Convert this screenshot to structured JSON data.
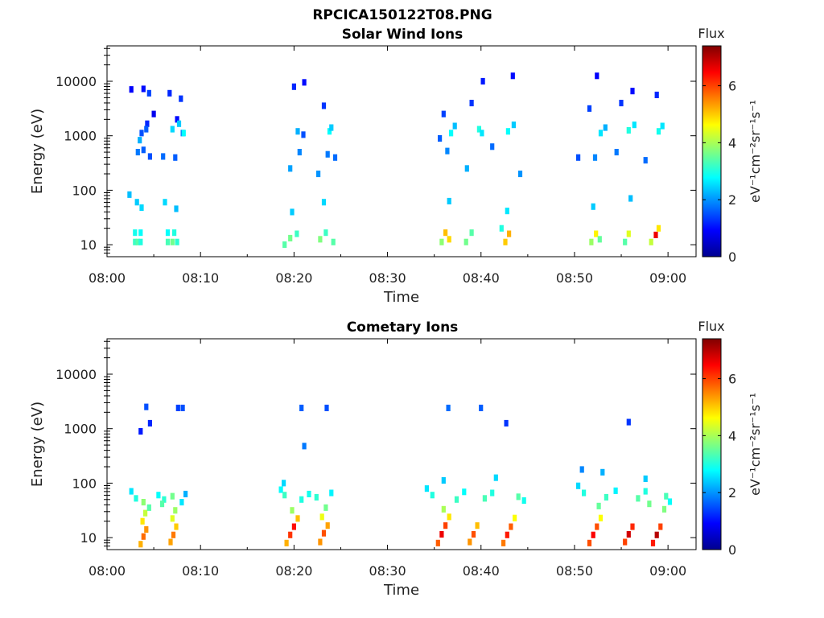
{
  "figure": {
    "title": "RPCICA150122T08.PNG"
  },
  "colorbar": {
    "label": "Flux",
    "unit_text": "eV⁻¹cm⁻²sr⁻¹s⁻¹",
    "ticks": [
      "0",
      "2",
      "4",
      "6"
    ],
    "range": [
      0,
      7.4
    ],
    "colormap": "jet"
  },
  "chart_data": [
    {
      "type": "heatmap",
      "title": "Solar Wind Ions",
      "xlabel": "Time",
      "ylabel": "Energy (eV)",
      "xticks": [
        "08:00",
        "08:10",
        "08:20",
        "08:30",
        "08:40",
        "08:50",
        "09:00"
      ],
      "yticks": [
        "10",
        "100",
        "1000",
        "10000"
      ],
      "xlim_minutes": [
        0,
        63
      ],
      "ylim_log10": [
        0.78,
        4.65
      ],
      "yscale": "log",
      "cells": [
        [
          3.0,
          1.05,
          3.2
        ],
        [
          3.3,
          1.05,
          3.4
        ],
        [
          3.6,
          1.05,
          3.0
        ],
        [
          3.0,
          1.22,
          2.9
        ],
        [
          3.6,
          1.22,
          2.8
        ],
        [
          6.5,
          1.05,
          3.3
        ],
        [
          7.0,
          1.05,
          3.6
        ],
        [
          7.5,
          1.05,
          3.1
        ],
        [
          6.5,
          1.22,
          2.8
        ],
        [
          7.2,
          1.22,
          3.0
        ],
        [
          2.4,
          1.92,
          2.3
        ],
        [
          3.2,
          1.78,
          2.4
        ],
        [
          3.7,
          1.68,
          2.5
        ],
        [
          6.2,
          1.78,
          2.5
        ],
        [
          7.4,
          1.66,
          2.3
        ],
        [
          3.3,
          2.7,
          1.8
        ],
        [
          3.9,
          2.74,
          1.6
        ],
        [
          4.6,
          2.62,
          1.5
        ],
        [
          6.0,
          2.62,
          1.7
        ],
        [
          7.3,
          2.6,
          1.6
        ],
        [
          3.7,
          3.05,
          1.5
        ],
        [
          4.3,
          3.22,
          1.2
        ],
        [
          5.0,
          3.4,
          0.8
        ],
        [
          7.5,
          3.3,
          1.0
        ],
        [
          8.1,
          3.05,
          1.7
        ],
        [
          3.5,
          2.92,
          2.2
        ],
        [
          4.2,
          3.12,
          1.6
        ],
        [
          7.0,
          3.12,
          2.5
        ],
        [
          7.7,
          3.22,
          2.4
        ],
        [
          8.2,
          3.05,
          2.8
        ],
        [
          2.6,
          3.85,
          0.9
        ],
        [
          3.9,
          3.86,
          1.0
        ],
        [
          4.5,
          3.78,
          1.4
        ],
        [
          6.7,
          3.78,
          1.2
        ],
        [
          7.9,
          3.68,
          1.3
        ],
        [
          19.0,
          1.0,
          3.4
        ],
        [
          19.6,
          1.12,
          3.6
        ],
        [
          20.3,
          1.2,
          3.2
        ],
        [
          22.8,
          1.1,
          3.7
        ],
        [
          23.4,
          1.22,
          3.2
        ],
        [
          24.2,
          1.05,
          3.4
        ],
        [
          19.8,
          1.6,
          2.4
        ],
        [
          23.2,
          1.78,
          2.5
        ],
        [
          20.6,
          2.7,
          1.9
        ],
        [
          23.6,
          2.66,
          1.8
        ],
        [
          20.4,
          3.08,
          2.2
        ],
        [
          21.0,
          3.02,
          1.5
        ],
        [
          23.8,
          3.08,
          2.8
        ],
        [
          24.0,
          3.15,
          2.4
        ],
        [
          20.0,
          3.9,
          1.2
        ],
        [
          21.1,
          3.98,
          1.0
        ],
        [
          23.2,
          3.55,
          1.3
        ],
        [
          19.6,
          2.4,
          2.1
        ],
        [
          22.6,
          2.3,
          2.0
        ],
        [
          24.4,
          2.6,
          1.7
        ],
        [
          35.8,
          1.05,
          3.8
        ],
        [
          36.2,
          1.22,
          5.1
        ],
        [
          36.6,
          1.1,
          4.9
        ],
        [
          38.4,
          1.05,
          3.6
        ],
        [
          39.0,
          1.22,
          3.4
        ],
        [
          42.6,
          1.05,
          5.0
        ],
        [
          43.0,
          1.2,
          5.2
        ],
        [
          42.2,
          1.3,
          3.0
        ],
        [
          36.6,
          1.8,
          2.4
        ],
        [
          42.8,
          1.62,
          2.6
        ],
        [
          36.4,
          2.72,
          1.9
        ],
        [
          36.8,
          3.05,
          2.8
        ],
        [
          37.2,
          3.18,
          2.3
        ],
        [
          39.8,
          3.12,
          3.0
        ],
        [
          40.1,
          3.05,
          2.6
        ],
        [
          42.9,
          3.08,
          2.8
        ],
        [
          43.5,
          3.2,
          2.4
        ],
        [
          36.0,
          3.4,
          1.4
        ],
        [
          39.0,
          3.6,
          1.3
        ],
        [
          40.2,
          4.0,
          1.1
        ],
        [
          43.4,
          4.1,
          1.0
        ],
        [
          41.2,
          2.8,
          1.7
        ],
        [
          38.5,
          2.4,
          2.2
        ],
        [
          44.2,
          2.3,
          2.0
        ],
        [
          35.6,
          2.95,
          1.6
        ],
        [
          51.8,
          1.05,
          3.9
        ],
        [
          52.3,
          1.2,
          4.7
        ],
        [
          52.7,
          1.1,
          3.5
        ],
        [
          55.4,
          1.05,
          3.4
        ],
        [
          55.8,
          1.2,
          4.4
        ],
        [
          58.2,
          1.05,
          4.2
        ],
        [
          58.7,
          1.18,
          6.6
        ],
        [
          59.0,
          1.3,
          4.8
        ],
        [
          52.0,
          1.7,
          2.4
        ],
        [
          56.0,
          1.85,
          2.3
        ],
        [
          52.2,
          2.6,
          1.9
        ],
        [
          52.8,
          3.05,
          2.6
        ],
        [
          53.3,
          3.15,
          2.2
        ],
        [
          55.8,
          3.1,
          3.0
        ],
        [
          56.4,
          3.2,
          2.6
        ],
        [
          59.0,
          3.08,
          2.9
        ],
        [
          59.4,
          3.18,
          2.6
        ],
        [
          51.6,
          3.5,
          1.4
        ],
        [
          55.0,
          3.6,
          1.3
        ],
        [
          56.2,
          3.82,
          1.0
        ],
        [
          52.4,
          4.1,
          0.9
        ],
        [
          58.8,
          3.75,
          1.2
        ],
        [
          54.5,
          2.7,
          1.8
        ],
        [
          57.6,
          2.55,
          1.7
        ],
        [
          50.4,
          2.6,
          1.5
        ]
      ]
    },
    {
      "type": "heatmap",
      "title": "Cometary Ions",
      "xlabel": "Time",
      "ylabel": "Energy (eV)",
      "xticks": [
        "08:00",
        "08:10",
        "08:20",
        "08:30",
        "08:40",
        "08:50",
        "09:00"
      ],
      "yticks": [
        "10",
        "100",
        "1000",
        "10000"
      ],
      "xlim_minutes": [
        0,
        63
      ],
      "ylim_log10": [
        0.78,
        4.65
      ],
      "yscale": "log",
      "cells": [
        [
          3.6,
          0.88,
          5.2
        ],
        [
          3.9,
          1.02,
          5.7
        ],
        [
          4.2,
          1.15,
          5.4
        ],
        [
          3.8,
          1.3,
          4.8
        ],
        [
          4.1,
          1.45,
          4.2
        ],
        [
          6.8,
          0.92,
          5.3
        ],
        [
          7.1,
          1.05,
          5.6
        ],
        [
          7.4,
          1.2,
          5.0
        ],
        [
          7.0,
          1.35,
          4.4
        ],
        [
          7.3,
          1.5,
          3.9
        ],
        [
          2.6,
          1.85,
          2.6
        ],
        [
          3.1,
          1.72,
          3.0
        ],
        [
          3.9,
          1.65,
          3.8
        ],
        [
          4.5,
          1.55,
          3.4
        ],
        [
          5.5,
          1.78,
          2.8
        ],
        [
          6.1,
          1.7,
          3.1
        ],
        [
          7.0,
          1.76,
          3.6
        ],
        [
          8.0,
          1.65,
          2.6
        ],
        [
          8.4,
          1.8,
          2.2
        ],
        [
          5.9,
          1.62,
          3.4
        ],
        [
          4.2,
          3.4,
          1.5
        ],
        [
          7.6,
          3.38,
          1.4
        ],
        [
          4.6,
          3.1,
          1.2
        ],
        [
          3.6,
          2.95,
          1.1
        ],
        [
          8.1,
          3.38,
          1.5
        ],
        [
          19.2,
          0.9,
          5.2
        ],
        [
          19.6,
          1.05,
          6.1
        ],
        [
          20.0,
          1.2,
          6.4
        ],
        [
          20.4,
          1.35,
          5.1
        ],
        [
          19.8,
          1.5,
          3.9
        ],
        [
          22.8,
          0.92,
          5.4
        ],
        [
          23.2,
          1.08,
          5.9
        ],
        [
          23.6,
          1.22,
          5.3
        ],
        [
          23.0,
          1.38,
          4.5
        ],
        [
          23.4,
          1.55,
          3.6
        ],
        [
          18.6,
          1.88,
          2.8
        ],
        [
          19.0,
          1.78,
          3.2
        ],
        [
          20.8,
          1.7,
          3.0
        ],
        [
          21.6,
          1.8,
          2.9
        ],
        [
          22.4,
          1.74,
          3.1
        ],
        [
          24.0,
          1.82,
          2.7
        ],
        [
          20.8,
          3.38,
          1.6
        ],
        [
          23.5,
          3.38,
          1.5
        ],
        [
          21.1,
          2.68,
          1.8
        ],
        [
          18.9,
          2.0,
          2.5
        ],
        [
          35.4,
          0.9,
          5.8
        ],
        [
          35.8,
          1.06,
          6.6
        ],
        [
          36.2,
          1.22,
          6.0
        ],
        [
          36.6,
          1.38,
          4.8
        ],
        [
          36.0,
          1.52,
          4.0
        ],
        [
          38.8,
          0.92,
          5.4
        ],
        [
          39.2,
          1.06,
          5.9
        ],
        [
          39.6,
          1.22,
          5.1
        ],
        [
          42.4,
          0.9,
          5.6
        ],
        [
          42.8,
          1.05,
          6.3
        ],
        [
          43.2,
          1.2,
          5.8
        ],
        [
          43.6,
          1.36,
          4.6
        ],
        [
          34.2,
          1.9,
          2.6
        ],
        [
          34.8,
          1.78,
          3.0
        ],
        [
          37.4,
          1.7,
          3.2
        ],
        [
          38.2,
          1.84,
          2.8
        ],
        [
          40.4,
          1.72,
          3.3
        ],
        [
          41.2,
          1.82,
          3.0
        ],
        [
          44.0,
          1.75,
          3.4
        ],
        [
          44.6,
          1.68,
          2.9
        ],
        [
          36.5,
          3.38,
          1.7
        ],
        [
          40.0,
          3.38,
          1.6
        ],
        [
          42.7,
          3.1,
          1.3
        ],
        [
          36.0,
          2.05,
          2.4
        ],
        [
          41.6,
          2.1,
          2.5
        ],
        [
          51.6,
          0.9,
          5.9
        ],
        [
          52.0,
          1.05,
          6.5
        ],
        [
          52.4,
          1.2,
          5.9
        ],
        [
          52.8,
          1.36,
          4.6
        ],
        [
          55.4,
          0.92,
          6.0
        ],
        [
          55.8,
          1.06,
          6.8
        ],
        [
          56.2,
          1.2,
          6.2
        ],
        [
          58.4,
          0.9,
          6.3
        ],
        [
          58.8,
          1.05,
          7.0
        ],
        [
          59.2,
          1.2,
          6.0
        ],
        [
          50.4,
          1.95,
          2.5
        ],
        [
          51.0,
          1.82,
          3.0
        ],
        [
          53.4,
          1.74,
          3.2
        ],
        [
          54.4,
          1.86,
          2.7
        ],
        [
          56.8,
          1.72,
          3.4
        ],
        [
          57.6,
          1.85,
          3.0
        ],
        [
          59.8,
          1.76,
          3.3
        ],
        [
          60.2,
          1.66,
          2.8
        ],
        [
          55.8,
          3.12,
          1.3
        ],
        [
          57.6,
          2.08,
          2.4
        ],
        [
          53.0,
          2.2,
          2.2
        ],
        [
          50.8,
          2.25,
          1.9
        ],
        [
          58.0,
          1.62,
          3.6
        ],
        [
          52.6,
          1.58,
          3.5
        ],
        [
          59.6,
          1.52,
          3.7
        ]
      ]
    }
  ]
}
